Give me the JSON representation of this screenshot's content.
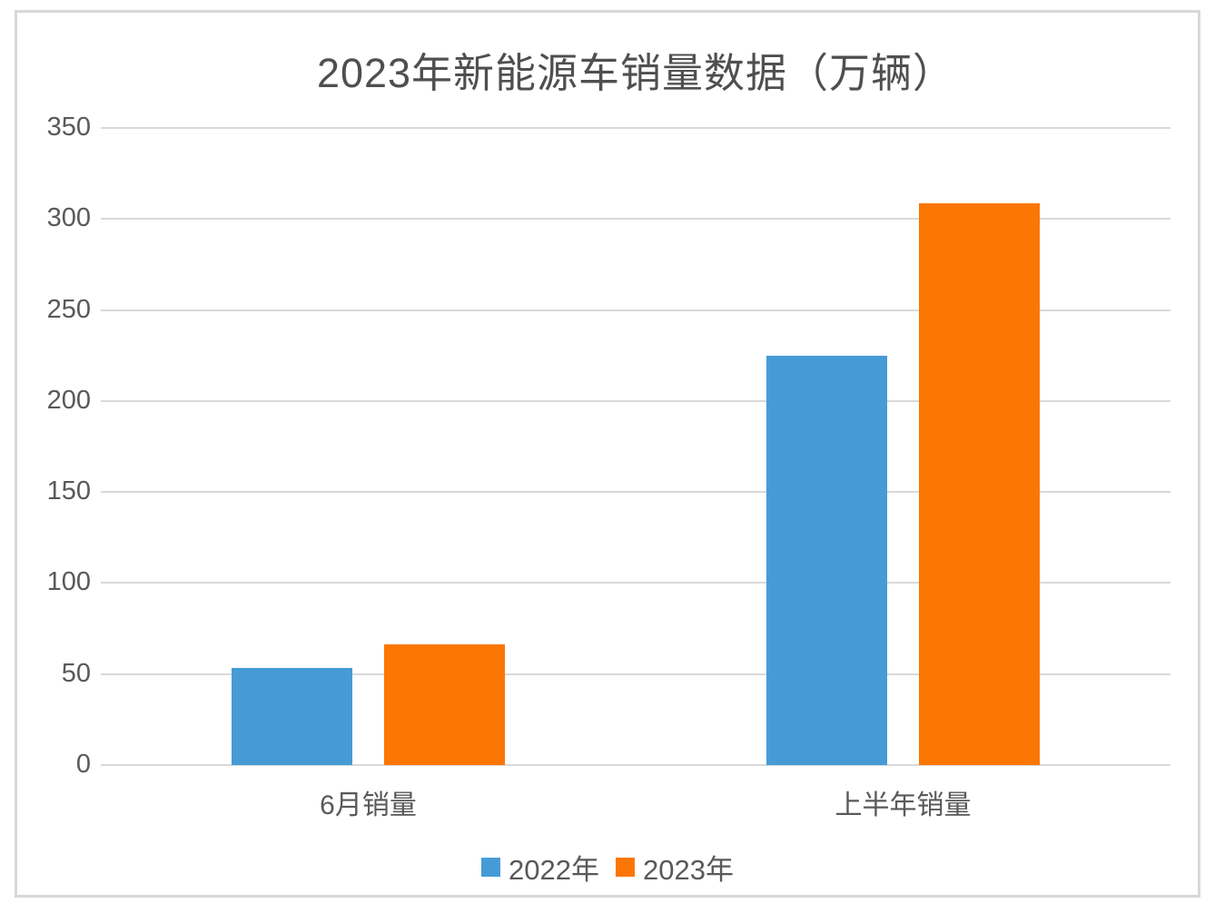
{
  "window": {
    "background_color": "#ffffff",
    "frame_border_color": "#d8d8d8"
  },
  "chart_data": {
    "type": "bar",
    "title": "2023年新能源车销量数据（万辆）",
    "categories": [
      "6月销量",
      "上半年销量"
    ],
    "series": [
      {
        "name": "2022年",
        "color": "#469BD7",
        "values": [
          53.2,
          224.7
        ]
      },
      {
        "name": "2023年",
        "color": "#FC7603",
        "values": [
          66.5,
          308.6
        ]
      }
    ],
    "xlabel": "",
    "ylabel": "",
    "ylim": [
      0,
      350
    ],
    "yticks": [
      0,
      50,
      100,
      150,
      200,
      250,
      300,
      350
    ],
    "grid": true,
    "gridline_color": "#d9d9d9",
    "axis_text_color": "#595959",
    "title_color": "#4f4f4f",
    "legend_position": "bottom",
    "legend_entries": [
      "2022年",
      "2023年"
    ]
  }
}
